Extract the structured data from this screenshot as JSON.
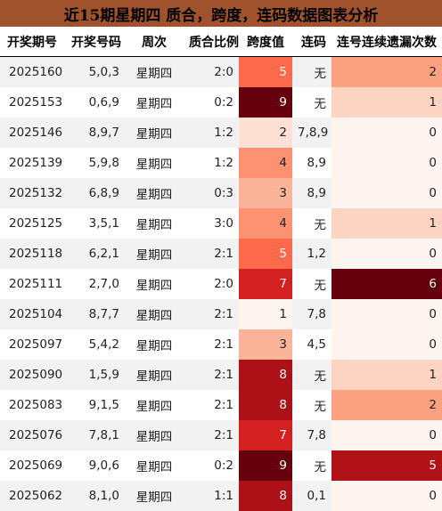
{
  "title": "近15期星期四 质合，跨度，连码数据图表分析",
  "columns": [
    "开奖期号",
    "开奖号码",
    "周次",
    "质合比例",
    "跨度值",
    "连码",
    "连号连续遗漏次数"
  ],
  "colors": {
    "title_bg": "#a0522d",
    "header_bg": "#ffffff",
    "row_even": "#f2f2f2",
    "row_odd": "#ffffff"
  },
  "rows": [
    {
      "issue": "2025160",
      "numbers": "5,0,3",
      "week": "星期四",
      "ratio": "2:0",
      "span": "5",
      "consec": "无",
      "miss": "2",
      "span_bg": "#fb6a4a",
      "span_fg": "#ffffff",
      "miss_bg": "#fca082",
      "miss_fg": "#222222"
    },
    {
      "issue": "2025153",
      "numbers": "0,6,9",
      "week": "星期四",
      "ratio": "0:2",
      "span": "9",
      "consec": "无",
      "miss": "1",
      "span_bg": "#67000d",
      "span_fg": "#ffffff",
      "miss_bg": "#fdd4c2",
      "miss_fg": "#222222"
    },
    {
      "issue": "2025146",
      "numbers": "8,9,7",
      "week": "星期四",
      "ratio": "1:2",
      "span": "2",
      "consec": "7,8,9",
      "miss": "0",
      "span_bg": "#fee1d4",
      "span_fg": "#222222",
      "miss_bg": "#fff5f0",
      "miss_fg": "#222222"
    },
    {
      "issue": "2025139",
      "numbers": "5,9,8",
      "week": "星期四",
      "ratio": "1:2",
      "span": "4",
      "consec": "8,9",
      "miss": "0",
      "span_bg": "#fc9272",
      "span_fg": "#222222",
      "miss_bg": "#fff5f0",
      "miss_fg": "#222222"
    },
    {
      "issue": "2025132",
      "numbers": "6,8,9",
      "week": "星期四",
      "ratio": "0:3",
      "span": "3",
      "consec": "8,9",
      "miss": "0",
      "span_bg": "#fcb499",
      "span_fg": "#222222",
      "miss_bg": "#fff5f0",
      "miss_fg": "#222222"
    },
    {
      "issue": "2025125",
      "numbers": "3,5,1",
      "week": "星期四",
      "ratio": "3:0",
      "span": "4",
      "consec": "无",
      "miss": "1",
      "span_bg": "#fc9272",
      "span_fg": "#222222",
      "miss_bg": "#fdd4c2",
      "miss_fg": "#222222"
    },
    {
      "issue": "2025118",
      "numbers": "6,2,1",
      "week": "星期四",
      "ratio": "2:1",
      "span": "5",
      "consec": "1,2",
      "miss": "0",
      "span_bg": "#fb6a4a",
      "span_fg": "#ffffff",
      "miss_bg": "#fff5f0",
      "miss_fg": "#222222"
    },
    {
      "issue": "2025111",
      "numbers": "2,7,0",
      "week": "星期四",
      "ratio": "2:0",
      "span": "7",
      "consec": "无",
      "miss": "6",
      "span_bg": "#d42020",
      "span_fg": "#ffffff",
      "miss_bg": "#67000d",
      "miss_fg": "#ffffff"
    },
    {
      "issue": "2025104",
      "numbers": "8,7,7",
      "week": "星期四",
      "ratio": "2:1",
      "span": "1",
      "consec": "7,8",
      "miss": "0",
      "span_bg": "#fff5f0",
      "span_fg": "#222222",
      "miss_bg": "#fff5f0",
      "miss_fg": "#222222"
    },
    {
      "issue": "2025097",
      "numbers": "5,4,2",
      "week": "星期四",
      "ratio": "2:1",
      "span": "3",
      "consec": "4,5",
      "miss": "0",
      "span_bg": "#fcb499",
      "span_fg": "#222222",
      "miss_bg": "#fff5f0",
      "miss_fg": "#222222"
    },
    {
      "issue": "2025090",
      "numbers": "1,5,9",
      "week": "星期四",
      "ratio": "2:1",
      "span": "8",
      "consec": "无",
      "miss": "1",
      "span_bg": "#ad1117",
      "span_fg": "#ffffff",
      "miss_bg": "#fdd4c2",
      "miss_fg": "#222222"
    },
    {
      "issue": "2025083",
      "numbers": "9,1,5",
      "week": "星期四",
      "ratio": "2:1",
      "span": "8",
      "consec": "无",
      "miss": "2",
      "span_bg": "#ad1117",
      "span_fg": "#ffffff",
      "miss_bg": "#fca082",
      "miss_fg": "#222222"
    },
    {
      "issue": "2025076",
      "numbers": "7,8,1",
      "week": "星期四",
      "ratio": "2:1",
      "span": "7",
      "consec": "7,8",
      "miss": "0",
      "span_bg": "#d42020",
      "span_fg": "#ffffff",
      "miss_bg": "#fff5f0",
      "miss_fg": "#222222"
    },
    {
      "issue": "2025069",
      "numbers": "9,0,6",
      "week": "星期四",
      "ratio": "0:2",
      "span": "9",
      "consec": "无",
      "miss": "5",
      "span_bg": "#67000d",
      "span_fg": "#ffffff",
      "miss_bg": "#b11218",
      "miss_fg": "#ffffff"
    },
    {
      "issue": "2025062",
      "numbers": "8,1,0",
      "week": "星期四",
      "ratio": "1:1",
      "span": "8",
      "consec": "0,1",
      "miss": "0",
      "span_bg": "#ad1117",
      "span_fg": "#ffffff",
      "miss_bg": "#fff5f0",
      "miss_fg": "#222222"
    }
  ]
}
